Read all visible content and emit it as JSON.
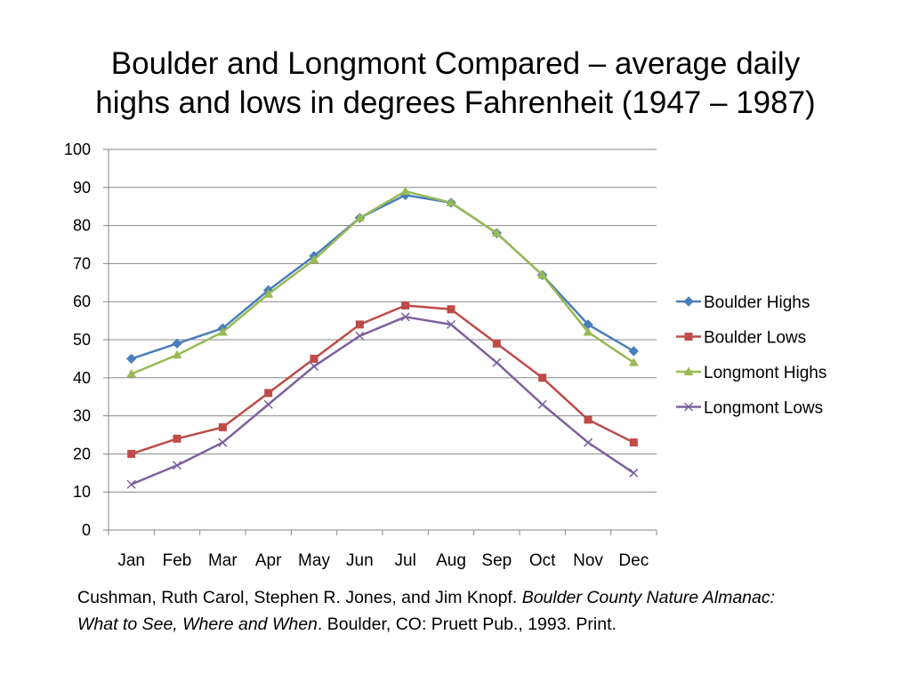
{
  "slide": {
    "title_line1": "Boulder and Longmont Compared – average daily",
    "title_line2": "highs and lows in degrees Fahrenheit (1947 – 1987)",
    "citation": {
      "authors": "Cushman, Ruth Carol, Stephen R. Jones, and Jim Knopf. ",
      "book_title": "Boulder County Nature Almanac: What to See, Where and When",
      "publisher": ". Boulder, CO: Pruett Pub., 1993. Print."
    }
  },
  "chart_data": {
    "type": "line",
    "title": "Boulder and Longmont Compared – average daily highs and lows in degrees Fahrenheit (1947 – 1987)",
    "categories": [
      "Jan",
      "Feb",
      "Mar",
      "Apr",
      "May",
      "Jun",
      "Jul",
      "Aug",
      "Sep",
      "Oct",
      "Nov",
      "Dec"
    ],
    "ylim": [
      0,
      100
    ],
    "yticks": [
      0,
      10,
      20,
      30,
      40,
      50,
      60,
      70,
      80,
      90,
      100
    ],
    "grid": true,
    "legend": "right",
    "series": [
      {
        "name": "Boulder Highs",
        "color": "#4a7ebb",
        "marker": "diamond",
        "values": [
          45,
          49,
          53,
          63,
          72,
          82,
          88,
          86,
          78,
          67,
          54,
          47
        ]
      },
      {
        "name": "Boulder Lows",
        "color": "#be4b48",
        "marker": "square",
        "values": [
          20,
          24,
          27,
          36,
          45,
          54,
          59,
          58,
          49,
          40,
          29,
          23
        ]
      },
      {
        "name": "Longmont Highs",
        "color": "#98b954",
        "marker": "triangle",
        "values": [
          41,
          46,
          52,
          62,
          71,
          82,
          89,
          86,
          78,
          67,
          52,
          44
        ]
      },
      {
        "name": "Longmont Lows",
        "color": "#7d60a0",
        "marker": "x",
        "values": [
          12,
          17,
          23,
          33,
          43,
          51,
          56,
          54,
          44,
          33,
          23,
          15
        ]
      }
    ]
  }
}
